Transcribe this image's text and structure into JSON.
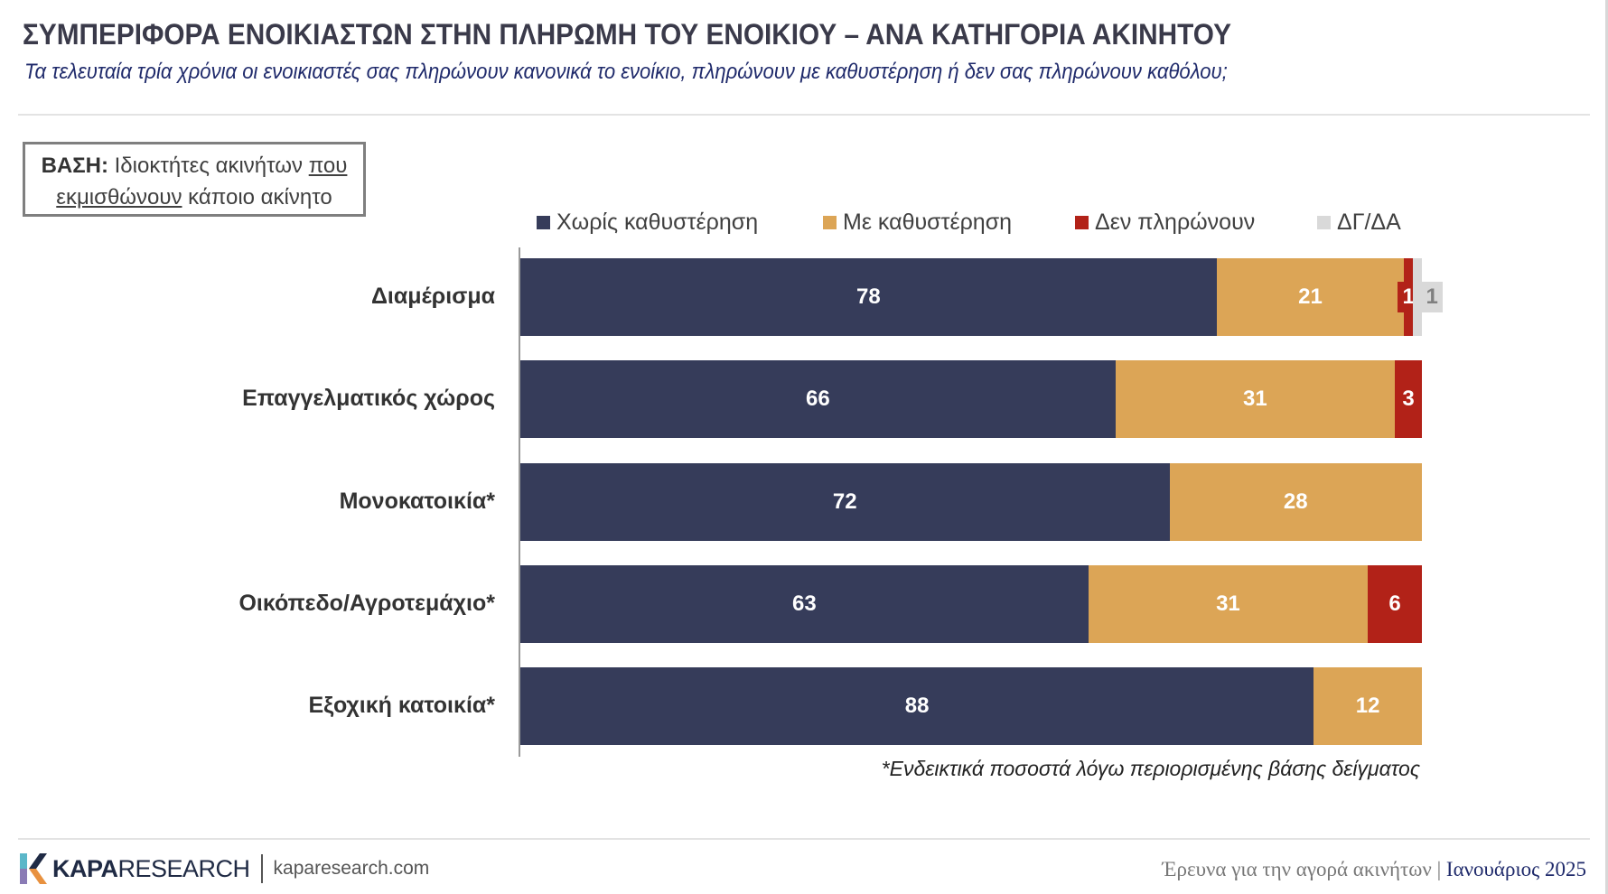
{
  "header": {
    "title": "ΣΥΜΠΕΡΙΦΟΡΑ ΕΝΟΙΚΙΑΣΤΩΝ ΣΤΗΝ ΠΛΗΡΩΜΗ ΤΟΥ ΕΝΟΙΚΙΟΥ – ΑΝΑ ΚΑΤΗΓΟΡΙΑ ΑΚΙΝΗΤΟΥ",
    "subtitle": "Τα τελευταία τρία χρόνια οι ενοικιαστές σας πληρώνουν κανονικά το ενοίκιο, πληρώνουν με καθυστέρηση ή δεν σας πληρώνουν καθόλου;"
  },
  "base": {
    "label": "ΒΑΣΗ:",
    "text1": "Ιδιοκτήτες ακινήτων",
    "text2": "που",
    "text3": "εκμισθώνουν",
    "text4": "κάποιο ακίνητο"
  },
  "chart_data": {
    "type": "bar",
    "orientation": "horizontal-stacked-100",
    "categories": [
      "Διαμέρισμα",
      "Επαγγελματικός χώρος",
      "Μονοκατοικία*",
      "Οικόπεδο/Αγροτεμάχιο*",
      "Εξοχική κατοικία*"
    ],
    "series": [
      {
        "name": "Χωρίς καθυστέρηση",
        "color": "#363c5a",
        "label_color": "#ffffff",
        "values": [
          78,
          66,
          72,
          63,
          88
        ]
      },
      {
        "name": "Με καθυστέρηση",
        "color": "#dca556",
        "label_color": "#ffffff",
        "values": [
          21,
          31,
          28,
          31,
          12
        ]
      },
      {
        "name": "Δεν πληρώνουν",
        "color": "#b22218",
        "label_color": "#ffffff",
        "values": [
          1,
          3,
          null,
          6,
          null
        ]
      },
      {
        "name": "ΔΓ/ΔΑ",
        "color": "#d9d9d9",
        "label_color": "#808080",
        "values": [
          1,
          null,
          null,
          null,
          null
        ]
      }
    ],
    "legend_position": "top",
    "xlim": [
      0,
      100
    ],
    "footnote": "*Ενδεικτικά ποσοστά λόγω περιορισμένης βάσης δείγματος"
  },
  "footer": {
    "brand_bold": "KAPA",
    "brand_light": "RESEARCH",
    "site": "kaparesearch.com",
    "survey": "Έρευνα για την αγορά ακινήτων",
    "separator": "|",
    "date": "Ιανουάριος 2025"
  }
}
